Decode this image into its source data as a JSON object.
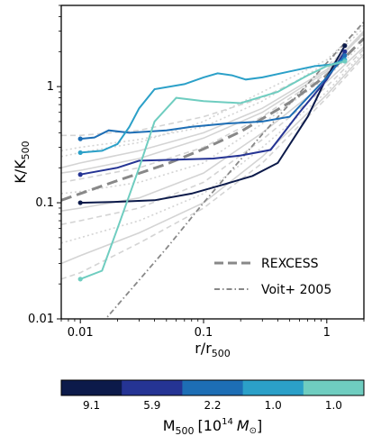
{
  "chart_data": {
    "type": "line",
    "xscale": "log",
    "yscale": "log",
    "xlim": [
      0.007,
      2.0
    ],
    "ylim": [
      0.01,
      5.0
    ],
    "x_tick_labels": [
      "0.01",
      "0.1",
      "1"
    ],
    "y_tick_labels": [
      "0.01",
      "0.1",
      "1"
    ],
    "xlabel": "r/r",
    "xlabel_sub": "500",
    "ylabel": "K/K",
    "ylabel_sub": "500",
    "grid": false,
    "legend": {
      "position": "lower-right",
      "entries": [
        {
          "label": "REXCESS",
          "style": "dashed",
          "color": "#888888"
        },
        {
          "label": "Voit+ 2005",
          "style": "dashdot",
          "color": "#888888"
        }
      ]
    },
    "reference_lines": [
      {
        "name": "REXCESS",
        "style": "dashed",
        "color": "#888888",
        "x": [
          0.007,
          0.01,
          0.02,
          0.05,
          0.1,
          0.2,
          0.5,
          1.0,
          2.0
        ],
        "y": [
          0.105,
          0.12,
          0.155,
          0.215,
          0.29,
          0.41,
          0.73,
          1.25,
          2.6
        ]
      },
      {
        "name": "Voit+ 2005",
        "style": "dashdot",
        "color": "#888888",
        "x": [
          0.015,
          0.05,
          0.1,
          0.3,
          1.0,
          2.0
        ],
        "y": [
          0.0092,
          0.0405,
          0.1,
          0.39,
          1.6,
          3.6
        ]
      }
    ],
    "background_profiles": [
      {
        "x": [
          0.007,
          0.01,
          0.03,
          0.1,
          0.3,
          1.0,
          2.0
        ],
        "y": [
          0.38,
          0.38,
          0.42,
          0.55,
          0.8,
          1.5,
          2.8
        ]
      },
      {
        "x": [
          0.007,
          0.01,
          0.03,
          0.1,
          0.3,
          1.0,
          2.0
        ],
        "y": [
          0.28,
          0.3,
          0.35,
          0.45,
          0.75,
          1.6,
          3.2
        ]
      },
      {
        "x": [
          0.007,
          0.01,
          0.03,
          0.1,
          0.3,
          1.0,
          2.0
        ],
        "y": [
          0.2,
          0.22,
          0.28,
          0.4,
          0.65,
          1.4,
          3.0
        ]
      },
      {
        "x": [
          0.007,
          0.01,
          0.03,
          0.1,
          0.3,
          1.0,
          2.0
        ],
        "y": [
          0.15,
          0.16,
          0.2,
          0.3,
          0.55,
          1.3,
          2.6
        ]
      },
      {
        "x": [
          0.007,
          0.01,
          0.03,
          0.1,
          0.3,
          1.0,
          2.0
        ],
        "y": [
          0.12,
          0.125,
          0.15,
          0.22,
          0.48,
          1.2,
          2.4
        ]
      },
      {
        "x": [
          0.007,
          0.01,
          0.03,
          0.1,
          0.3,
          1.0,
          2.0
        ],
        "y": [
          0.085,
          0.09,
          0.11,
          0.18,
          0.4,
          1.1,
          2.2
        ]
      },
      {
        "x": [
          0.007,
          0.01,
          0.03,
          0.1,
          0.3,
          1.0,
          2.0
        ],
        "y": [
          0.065,
          0.07,
          0.09,
          0.15,
          0.35,
          1.0,
          2.1
        ]
      },
      {
        "x": [
          0.007,
          0.01,
          0.03,
          0.1,
          0.3,
          1.0,
          2.0
        ],
        "y": [
          0.045,
          0.05,
          0.07,
          0.12,
          0.3,
          0.9,
          2.0
        ]
      },
      {
        "x": [
          0.007,
          0.01,
          0.03,
          0.1,
          0.3,
          1.0,
          2.0
        ],
        "y": [
          0.03,
          0.035,
          0.055,
          0.1,
          0.25,
          0.85,
          1.9
        ]
      },
      {
        "x": [
          0.007,
          0.01,
          0.03,
          0.1,
          0.3,
          1.0,
          2.0
        ],
        "y": [
          0.022,
          0.025,
          0.045,
          0.09,
          0.22,
          0.8,
          1.8
        ]
      },
      {
        "x": [
          0.007,
          0.01,
          0.03,
          0.1,
          0.3,
          1.0,
          2.0
        ],
        "y": [
          0.25,
          0.27,
          0.33,
          0.5,
          0.9,
          1.7,
          3.4
        ]
      },
      {
        "x": [
          0.007,
          0.01,
          0.03,
          0.1,
          0.3,
          1.0,
          2.0
        ],
        "y": [
          0.18,
          0.19,
          0.24,
          0.36,
          0.6,
          1.35,
          2.9
        ]
      }
    ],
    "series": [
      {
        "name": "9.1",
        "color": "#0c1a4a",
        "x": [
          0.01,
          0.02,
          0.04,
          0.08,
          0.15,
          0.25,
          0.4,
          0.7,
          1.0,
          1.4
        ],
        "y": [
          0.1,
          0.102,
          0.105,
          0.12,
          0.145,
          0.17,
          0.22,
          0.55,
          1.2,
          2.25
        ]
      },
      {
        "name": "5.9",
        "color": "#253494",
        "x": [
          0.01,
          0.02,
          0.03,
          0.06,
          0.12,
          0.2,
          0.35,
          0.6,
          1.0,
          1.4
        ],
        "y": [
          0.175,
          0.2,
          0.23,
          0.235,
          0.24,
          0.255,
          0.285,
          0.6,
          1.15,
          2.0
        ]
      },
      {
        "name": "2.2",
        "color": "#1d6eb5",
        "x": [
          0.01,
          0.013,
          0.017,
          0.025,
          0.05,
          0.08,
          0.15,
          0.3,
          0.5,
          1.0,
          1.4
        ],
        "y": [
          0.355,
          0.365,
          0.42,
          0.4,
          0.42,
          0.45,
          0.48,
          0.5,
          0.55,
          1.2,
          1.85
        ]
      },
      {
        "name": "1.0",
        "color": "#2ba0c8",
        "x": [
          0.01,
          0.015,
          0.02,
          0.025,
          0.03,
          0.04,
          0.07,
          0.1,
          0.13,
          0.17,
          0.22,
          0.3,
          0.5,
          0.8,
          1.1,
          1.4
        ],
        "y": [
          0.27,
          0.28,
          0.32,
          0.45,
          0.65,
          0.95,
          1.05,
          1.2,
          1.3,
          1.25,
          1.15,
          1.2,
          1.35,
          1.5,
          1.55,
          1.7
        ]
      },
      {
        "name": "1.0",
        "color": "#6fcdc0",
        "x": [
          0.01,
          0.015,
          0.02,
          0.03,
          0.04,
          0.06,
          0.1,
          0.2,
          0.4,
          0.7,
          1.0,
          1.4
        ],
        "y": [
          0.022,
          0.026,
          0.06,
          0.2,
          0.5,
          0.8,
          0.75,
          0.72,
          0.9,
          1.25,
          1.5,
          1.65
        ]
      }
    ],
    "colorbar": {
      "labels": [
        "9.1",
        "5.9",
        "2.2",
        "1.0",
        "1.0"
      ],
      "colors": [
        "#0c1a4a",
        "#253494",
        "#1d6eb5",
        "#2ba0c8",
        "#6fcdc0"
      ],
      "title_main": "M",
      "title_sub": "500",
      "title_units": "[10",
      "title_exp": "14",
      "title_msun": "M"
    }
  }
}
